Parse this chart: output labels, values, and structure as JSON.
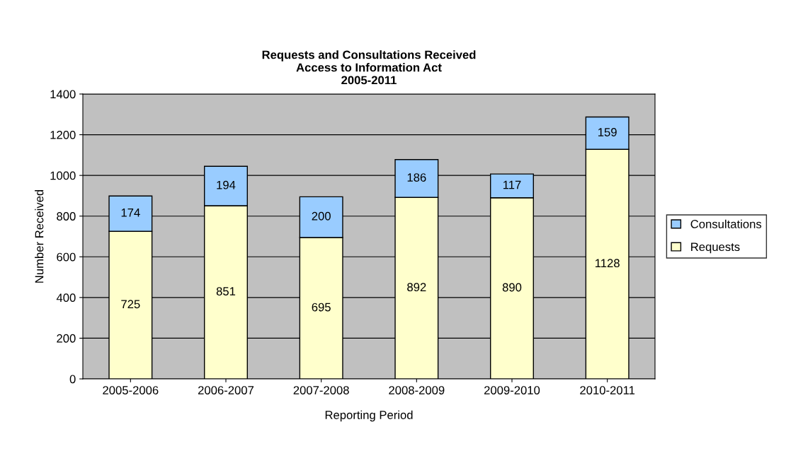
{
  "chart_data": {
    "type": "bar",
    "title": "Requests and Consultations Received\nAccess to Information Act\n2005-2011",
    "xlabel": "Reporting Period",
    "ylabel": "Number Received",
    "categories": [
      "2005-2006",
      "2006-2007",
      "2007-2008",
      "2008-2009",
      "2009-2010",
      "2010-2011"
    ],
    "series": [
      {
        "name": "Requests",
        "color": "#ffffcc",
        "values": [
          725,
          851,
          695,
          892,
          890,
          1128
        ]
      },
      {
        "name": "Consultations",
        "color": "#99ccff",
        "values": [
          174,
          194,
          200,
          186,
          117,
          159
        ]
      }
    ],
    "stacked": true,
    "data_labels": true,
    "ylim": [
      0,
      1400
    ],
    "yticks": [
      0,
      200,
      400,
      600,
      800,
      1000,
      1200,
      1400
    ],
    "grid": "y",
    "legend": "right"
  }
}
